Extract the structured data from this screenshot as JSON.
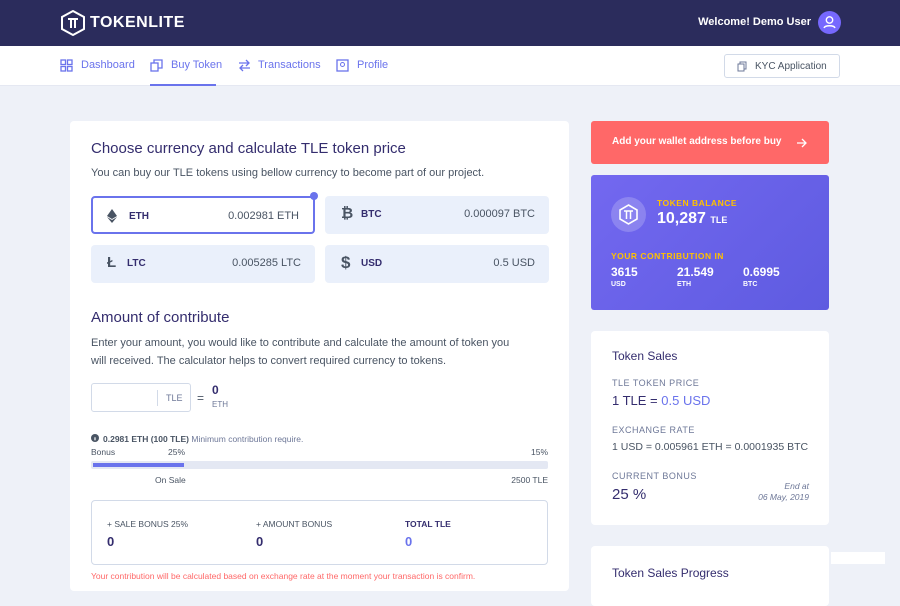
{
  "header": {
    "logo": "TOKENLITE",
    "welcome": "Welcome! Demo User"
  },
  "nav": {
    "items": [
      "Dashboard",
      "Buy Token",
      "Transactions",
      "Profile"
    ],
    "kyc": "KYC Application"
  },
  "buy": {
    "title": "Choose currency and calculate TLE token price",
    "subtitle": "You can buy our TLE tokens using bellow currency to become part of our project.",
    "currencies": [
      {
        "code": "ETH",
        "price": "0.002981 ETH"
      },
      {
        "code": "BTC",
        "price": "0.000097 BTC"
      },
      {
        "code": "LTC",
        "price": "0.005285 LTC"
      },
      {
        "code": "USD",
        "price": "0.5 USD"
      }
    ]
  },
  "amount": {
    "title": "Amount of contribute",
    "text": "Enter your amount, you would like to contribute and calculate the amount of token you will received. The calculator helps to convert required currency to tokens.",
    "calculator": {
      "unit": "TLE",
      "equals": "=",
      "result": "0",
      "result_unit": "ETH"
    },
    "minimum": {
      "amount": "0.2981 ETH (100 TLE)",
      "text": "Minimum contribution require."
    },
    "progress": {
      "bonus": "Bonus",
      "start_pct": "25%",
      "end_pct": "15%",
      "start_label": "On Sale",
      "end_label": "2500 TLE"
    },
    "bonuses": [
      {
        "label": "+ SALE BONUS 25%",
        "value": "0"
      },
      {
        "label": "+ AMOUNT BONUS",
        "value": "0"
      },
      {
        "label": "TOTAL TLE",
        "value": "0"
      }
    ],
    "note": "Your contribution will be calculated based on exchange rate at the moment your transaction is confirm."
  },
  "wallet_button": "Add your wallet address before buy",
  "balance": {
    "label": "TOKEN BALANCE",
    "amount": "10,287",
    "unit": "TLE",
    "contribution_label": "YOUR CONTRIBUTION IN",
    "contributions": [
      {
        "amount": "3615",
        "unit": "USD"
      },
      {
        "amount": "21.549",
        "unit": "ETH"
      },
      {
        "amount": "0.6995",
        "unit": "BTC"
      }
    ]
  },
  "token_sales": {
    "title": "Token Sales",
    "price_label": "TLE TOKEN PRICE",
    "price_prefix": "1 TLE =",
    "price_value": "0.5 USD",
    "rate_label": "EXCHANGE RATE",
    "rate": "1 USD = 0.005961 ETH = 0.0001935 BTC",
    "bonus_label": "CURRENT BONUS",
    "bonus": "25 %",
    "end_label": "End at",
    "end_date": "06 May, 2019"
  },
  "progress_card": {
    "title": "Token Sales Progress"
  }
}
